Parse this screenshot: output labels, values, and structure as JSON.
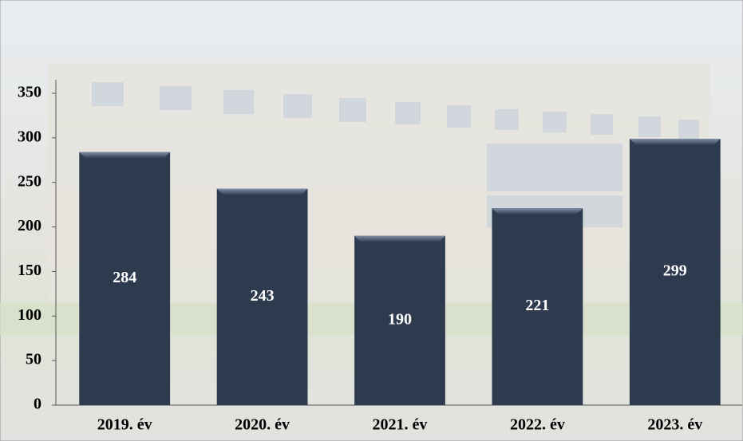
{
  "chart_data": {
    "type": "bar",
    "categories": [
      "2019. év",
      "2020. év",
      "2021. év",
      "2022. év",
      "2023. év"
    ],
    "values": [
      284,
      243,
      190,
      221,
      299
    ],
    "color": "#2e3a4e",
    "ylim": [
      0,
      350
    ],
    "yticks": [
      0,
      50,
      100,
      150,
      200,
      250,
      300,
      350
    ]
  }
}
